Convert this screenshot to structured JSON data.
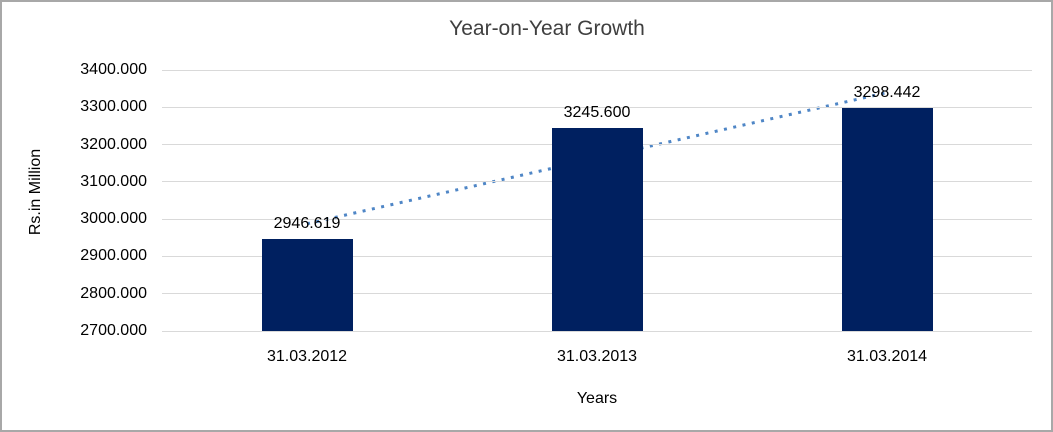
{
  "chart_data": {
    "type": "bar",
    "title": "Year-on-Year Growth",
    "xlabel": "Years",
    "ylabel": "Rs.in Million",
    "categories": [
      "31.03.2012",
      "31.03.2013",
      "31.03.2014"
    ],
    "values": [
      2946.619,
      3245.6,
      3298.442
    ],
    "data_labels": [
      "2946.619",
      "3245.600",
      "3298.442"
    ],
    "ylim": [
      2700,
      3400
    ],
    "ytick_values": [
      3400,
      3300,
      3200,
      3100,
      3000,
      2900,
      2800,
      2700
    ],
    "ytick_labels": [
      "3400.000",
      "3300.000",
      "3200.000",
      "3100.000",
      "3000.000",
      "2900.000",
      "2800.000",
      "2700.000"
    ],
    "grid": true,
    "legend": "none",
    "trendline": {
      "type": "linear",
      "style": "dotted",
      "color": "#4f86c6"
    },
    "colors": {
      "bar": "#002060",
      "gridline": "#d9d9d9",
      "text": "#000000",
      "title": "#3f3f3f",
      "frame_border": "#a8a8a8",
      "background": "#ffffff"
    }
  }
}
